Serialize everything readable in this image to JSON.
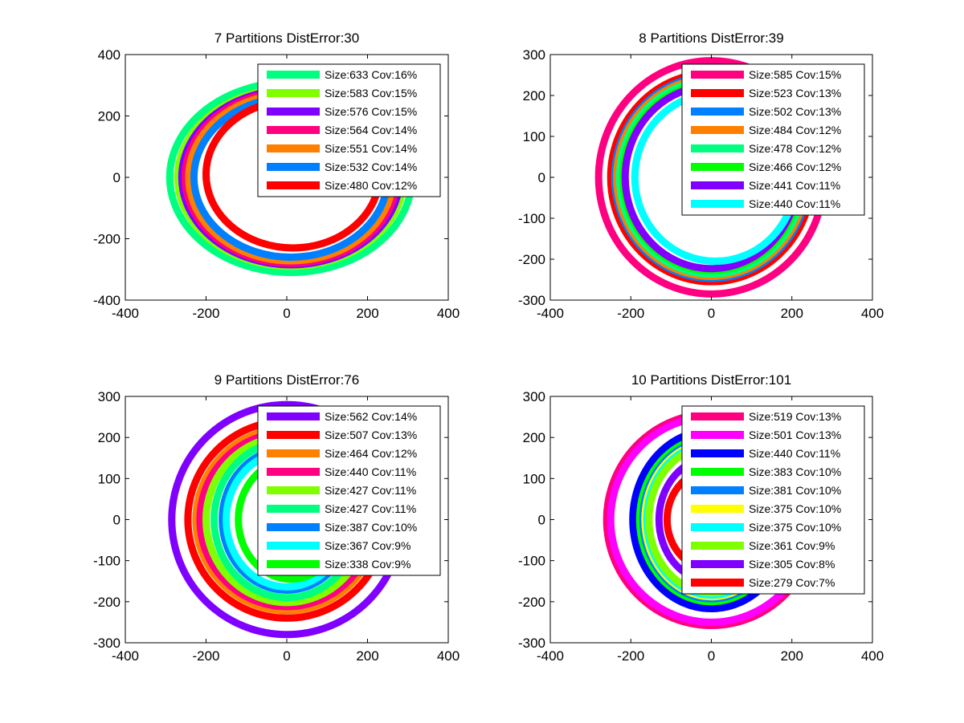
{
  "chart_data": [
    {
      "type": "line",
      "title": "7 Partitions DistError:30",
      "xlim": [
        -400,
        400
      ],
      "ylim": [
        -400,
        400
      ],
      "xticks": [
        -400,
        -200,
        0,
        200,
        400
      ],
      "yticks": [
        -400,
        -200,
        0,
        200,
        400
      ],
      "xtick_labels": [
        "-400",
        "-200",
        "0",
        "200",
        "400"
      ],
      "ytick_labels": [
        "-400",
        "-200",
        "0",
        "200",
        "400"
      ],
      "legend_position": "top-right",
      "series": [
        {
          "name": "Size:633 Cov:16%",
          "color": "#00ff80",
          "cx": 10,
          "cy": 0,
          "rx": 300,
          "ry": 310
        },
        {
          "name": "Size:583 Cov:15%",
          "color": "#80ff00",
          "cx": 10,
          "cy": 0,
          "rx": 280,
          "ry": 290
        },
        {
          "name": "Size:576 Cov:15%",
          "color": "#8000ff",
          "cx": 10,
          "cy": 0,
          "rx": 270,
          "ry": 285
        },
        {
          "name": "Size:564 Cov:14%",
          "color": "#ff0080",
          "cx": 10,
          "cy": 0,
          "rx": 262,
          "ry": 280
        },
        {
          "name": "Size:551 Cov:14%",
          "color": "#ff8000",
          "cx": 10,
          "cy": 0,
          "rx": 253,
          "ry": 272
        },
        {
          "name": "Size:532 Cov:14%",
          "color": "#0080ff",
          "cx": 10,
          "cy": 0,
          "rx": 240,
          "ry": 260
        },
        {
          "name": "Size:480 Cov:12%",
          "color": "#ff0000",
          "cx": 15,
          "cy": 10,
          "rx": 215,
          "ry": 240
        }
      ]
    },
    {
      "type": "line",
      "title": "8 Partitions DistError:39",
      "xlim": [
        -400,
        400
      ],
      "ylim": [
        -300,
        300
      ],
      "xticks": [
        -400,
        -200,
        0,
        200,
        400
      ],
      "yticks": [
        -300,
        -200,
        -100,
        0,
        100,
        200,
        300
      ],
      "xtick_labels": [
        "-400",
        "-200",
        "0",
        "200",
        "400"
      ],
      "ytick_labels": [
        "-300",
        "-200",
        "-100",
        "0",
        "100",
        "200",
        "300"
      ],
      "legend_position": "top-right",
      "series": [
        {
          "name": "Size:585 Cov:15%",
          "color": "#ff0080",
          "cx": 0,
          "cy": 0,
          "rx": 280,
          "ry": 285
        },
        {
          "name": "Size:523 Cov:13%",
          "color": "#ff0000",
          "cx": 0,
          "cy": 0,
          "rx": 250,
          "ry": 255
        },
        {
          "name": "Size:502 Cov:13%",
          "color": "#0080ff",
          "cx": 0,
          "cy": 0,
          "rx": 240,
          "ry": 247
        },
        {
          "name": "Size:484 Cov:12%",
          "color": "#ff8000",
          "cx": 0,
          "cy": 0,
          "rx": 235,
          "ry": 242
        },
        {
          "name": "Size:478 Cov:12%",
          "color": "#00ff80",
          "cx": 0,
          "cy": 0,
          "rx": 228,
          "ry": 236
        },
        {
          "name": "Size:466 Cov:12%",
          "color": "#00ff00",
          "cx": 0,
          "cy": 0,
          "rx": 220,
          "ry": 228
        },
        {
          "name": "Size:441 Cov:11%",
          "color": "#8000ff",
          "cx": 0,
          "cy": 0,
          "rx": 214,
          "ry": 223
        },
        {
          "name": "Size:440 Cov:11%",
          "color": "#00ffff",
          "cx": 10,
          "cy": 0,
          "rx": 200,
          "ry": 205
        }
      ]
    },
    {
      "type": "line",
      "title": "9 Partitions DistError:76",
      "xlim": [
        -400,
        400
      ],
      "ylim": [
        -300,
        300
      ],
      "xticks": [
        -400,
        -200,
        0,
        200,
        400
      ],
      "yticks": [
        -300,
        -200,
        -100,
        0,
        100,
        200,
        300
      ],
      "xtick_labels": [
        "-400",
        "-200",
        "0",
        "200",
        "400"
      ],
      "ytick_labels": [
        "-300",
        "-200",
        "-100",
        "0",
        "100",
        "200",
        "300"
      ],
      "legend_position": "top-right",
      "series": [
        {
          "name": "Size:562 Cov:14%",
          "color": "#8000ff",
          "cx": 0,
          "cy": 0,
          "rx": 285,
          "ry": 280
        },
        {
          "name": "Size:507 Cov:13%",
          "color": "#ff0000",
          "cx": 0,
          "cy": 0,
          "rx": 245,
          "ry": 240
        },
        {
          "name": "Size:464 Cov:12%",
          "color": "#ff8000",
          "cx": 0,
          "cy": 0,
          "rx": 225,
          "ry": 222
        },
        {
          "name": "Size:440 Cov:11%",
          "color": "#ff0080",
          "cx": 0,
          "cy": 0,
          "rx": 215,
          "ry": 212
        },
        {
          "name": "Size:427 Cov:11%",
          "color": "#80ff00",
          "cx": 0,
          "cy": 0,
          "rx": 200,
          "ry": 202
        },
        {
          "name": "Size:427 Cov:11%",
          "color": "#00ff80",
          "cx": 0,
          "cy": 0,
          "rx": 180,
          "ry": 190
        },
        {
          "name": "Size:387 Cov:10%",
          "color": "#0080ff",
          "cx": 0,
          "cy": 0,
          "rx": 160,
          "ry": 172
        },
        {
          "name": "Size:367 Cov:9%",
          "color": "#00ffff",
          "cx": 0,
          "cy": 0,
          "rx": 150,
          "ry": 164
        },
        {
          "name": "Size:338 Cov:9%",
          "color": "#00ff00",
          "cx": 10,
          "cy": 0,
          "rx": 130,
          "ry": 145
        }
      ]
    },
    {
      "type": "line",
      "title": "10 Partitions DistError:101",
      "xlim": [
        -400,
        400
      ],
      "ylim": [
        -300,
        300
      ],
      "xticks": [
        -400,
        -200,
        0,
        200,
        400
      ],
      "yticks": [
        -300,
        -200,
        -100,
        0,
        100,
        200,
        300
      ],
      "xtick_labels": [
        "-400",
        "-200",
        "0",
        "200",
        "400"
      ],
      "ytick_labels": [
        "-300",
        "-200",
        "-100",
        "0",
        "100",
        "200",
        "300"
      ],
      "legend_position": "top-right",
      "series": [
        {
          "name": "Size:519 Cov:13%",
          "color": "#ff0080",
          "cx": 0,
          "cy": 0,
          "rx": 260,
          "ry": 258
        },
        {
          "name": "Size:501 Cov:13%",
          "color": "#ff00ff",
          "cx": 0,
          "cy": 0,
          "rx": 250,
          "ry": 250
        },
        {
          "name": "Size:440 Cov:11%",
          "color": "#0000ff",
          "cx": 0,
          "cy": 0,
          "rx": 195,
          "ry": 217
        },
        {
          "name": "Size:383 Cov:10%",
          "color": "#00ff00",
          "cx": 0,
          "cy": 0,
          "rx": 178,
          "ry": 200
        },
        {
          "name": "Size:381 Cov:10%",
          "color": "#0080ff",
          "cx": 0,
          "cy": 0,
          "rx": 170,
          "ry": 193
        },
        {
          "name": "Size:375 Cov:10%",
          "color": "#ffff00",
          "cx": 0,
          "cy": 0,
          "rx": 165,
          "ry": 188
        },
        {
          "name": "Size:375 Cov:10%",
          "color": "#00ffff",
          "cx": 0,
          "cy": 0,
          "rx": 160,
          "ry": 184
        },
        {
          "name": "Size:361 Cov:9%",
          "color": "#80ff00",
          "cx": 0,
          "cy": 0,
          "rx": 155,
          "ry": 178
        },
        {
          "name": "Size:305 Cov:8%",
          "color": "#8000ff",
          "cx": 0,
          "cy": 0,
          "rx": 130,
          "ry": 150
        },
        {
          "name": "Size:279 Cov:7%",
          "color": "#ff0000",
          "cx": 10,
          "cy": 0,
          "rx": 120,
          "ry": 125
        }
      ]
    }
  ]
}
